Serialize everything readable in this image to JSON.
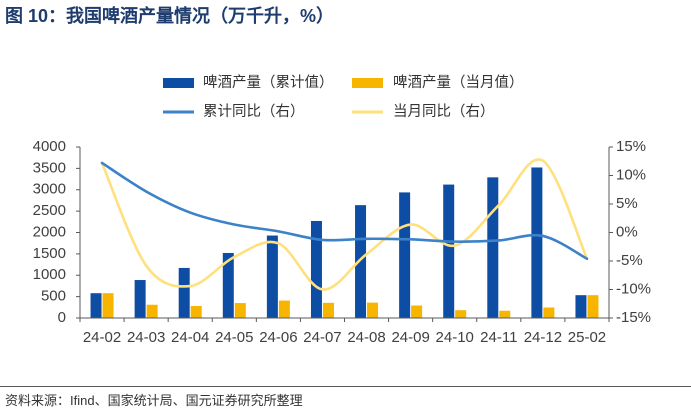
{
  "title": "图 10：我国啤酒产量情况（万千升，%）",
  "source": "资料来源：Ifind、国家统计局、国元证券研究所整理",
  "chart_data": {
    "type": "bar",
    "categories": [
      "24-02",
      "24-03",
      "24-04",
      "24-05",
      "24-06",
      "24-07",
      "24-08",
      "24-09",
      "24-10",
      "24-11",
      "24-12",
      "25-02"
    ],
    "series": [
      {
        "name": "啤酒产量（累计值）",
        "type": "bar",
        "axis": "left",
        "color": "#0E4DA4",
        "values": [
          580,
          888,
          1171,
          1521,
          1929,
          2270,
          2640,
          2938,
          3121,
          3290,
          3521,
          534
        ]
      },
      {
        "name": "啤酒产量（当月值）",
        "type": "bar",
        "axis": "left",
        "color": "#F7B500",
        "values": [
          580,
          310,
          280,
          350,
          408,
          355,
          360,
          292,
          183,
          170,
          246,
          534
        ]
      },
      {
        "name": "累计同比（右）",
        "type": "line",
        "axis": "right",
        "color": "#3B82C9",
        "values": [
          12.2,
          7.2,
          3.5,
          1.4,
          0.2,
          -1.3,
          -1.1,
          -1.2,
          -1.6,
          -1.4,
          -0.6,
          -4.6
        ]
      },
      {
        "name": "当月同比（右）",
        "type": "line",
        "axis": "right",
        "color": "#FFE07D",
        "values": [
          12.2,
          -5.8,
          -9.4,
          -4.3,
          -1.9,
          -10.0,
          -3.8,
          1.4,
          -2.3,
          4.8,
          12.6,
          -4.6
        ]
      }
    ],
    "y_left": {
      "range": [
        0,
        4000
      ],
      "tick_labels": [
        "0",
        "500",
        "1000",
        "1500",
        "2000",
        "2500",
        "3000",
        "3500",
        "4000"
      ]
    },
    "y_right": {
      "range": [
        -15,
        15
      ],
      "tick_labels": [
        "-15%",
        "-10%",
        "-5%",
        "0%",
        "5%",
        "10%",
        "15%"
      ]
    },
    "legend_position": "top",
    "grid": false
  }
}
